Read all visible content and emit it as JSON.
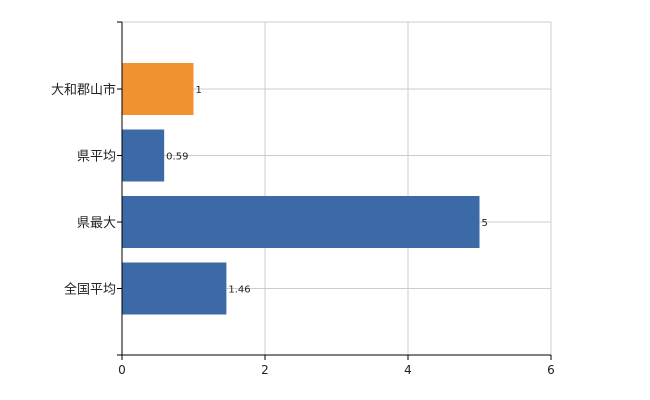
{
  "chart_data": {
    "type": "bar",
    "orientation": "horizontal",
    "categories": [
      "大和郡山市",
      "県平均",
      "県最大",
      "全国平均"
    ],
    "values": [
      1,
      0.59,
      5,
      1.46
    ],
    "value_labels": [
      "1",
      "0.59",
      "5",
      "1.46"
    ],
    "bar_colors": [
      "#f0922f",
      "#3b6aa7",
      "#3b6aa7",
      "#3b6aa7"
    ],
    "xlim": [
      0,
      6
    ],
    "x_ticks": [
      0,
      2,
      4,
      6
    ],
    "grid": true,
    "title": "",
    "xlabel": "",
    "ylabel": ""
  },
  "colors": {
    "highlight": "#f0922f",
    "default_bar": "#3b6aa7",
    "grid": "#cccccc",
    "axis": "#000000"
  }
}
